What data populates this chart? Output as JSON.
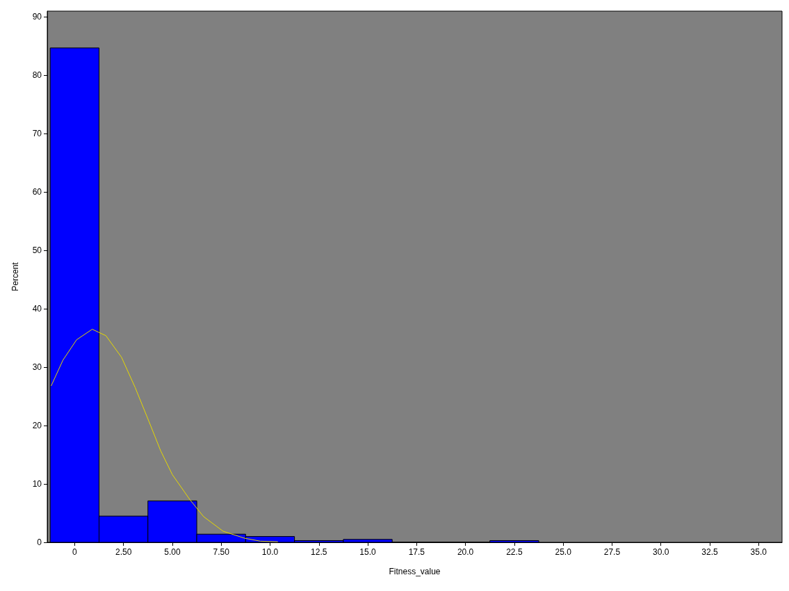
{
  "chart_data": {
    "type": "histogram",
    "xlabel": "Fitness_value",
    "ylabel": "Percent",
    "bins": [
      -1.25,
      1.25,
      3.75,
      6.25,
      8.75,
      11.25,
      13.75,
      16.25,
      18.75,
      21.25,
      23.75
    ],
    "values": [
      84.7,
      4.5,
      7.1,
      1.4,
      1.0,
      0.3,
      0.5,
      0,
      0,
      0.3
    ],
    "color": "#0000ff",
    "series": [
      {
        "type": "line",
        "color": "#e6d800",
        "x": [
          -1.2,
          -0.6,
          0.1,
          0.9,
          1.6,
          2.4,
          3.1,
          3.9,
          4.4,
          5.0,
          5.9,
          6.6,
          7.6,
          8.7,
          9.5,
          10.4
        ],
        "values": [
          26.8,
          31.2,
          34.7,
          36.5,
          35.4,
          31.7,
          26.5,
          19.9,
          15.7,
          11.6,
          7.3,
          4.4,
          1.9,
          0.7,
          0.2,
          0.1
        ]
      }
    ],
    "xlim": [
      -1.4,
      36.2
    ],
    "xticks": [
      0,
      {
        "value": 2.5,
        "label": "2.50"
      },
      {
        "value": 5,
        "label": "5.00"
      },
      {
        "value": 7.5,
        "label": "7.50"
      },
      {
        "value": 10,
        "label": "10.0"
      },
      12.5,
      {
        "value": 15,
        "label": "15.0"
      },
      17.5,
      {
        "value": 20,
        "label": "20.0"
      },
      22.5,
      {
        "value": 25,
        "label": "25.0"
      },
      27.5,
      {
        "value": 30,
        "label": "30.0"
      },
      32.5,
      {
        "value": 35,
        "label": "35.0"
      }
    ],
    "ylim": [
      0,
      91
    ],
    "yticks": [
      0,
      10,
      20,
      30,
      40,
      50,
      60,
      70,
      80,
      90
    ],
    "grid": false
  }
}
